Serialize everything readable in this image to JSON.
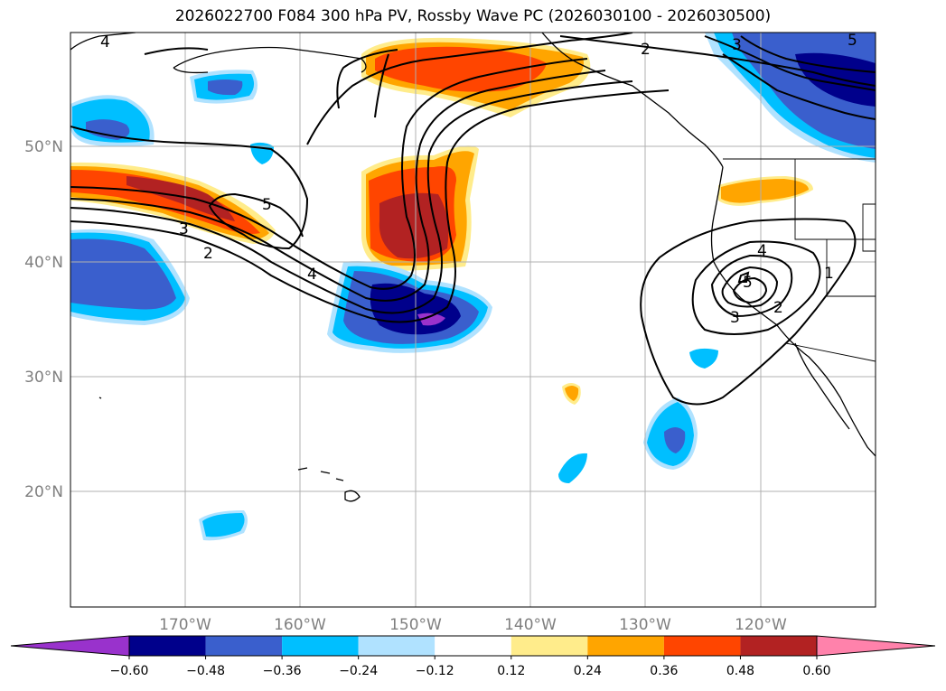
{
  "title": "2026022700 F084 300 hPa PV, Rossby Wave PC (2026030100 - 2026030500)",
  "lat_labels": [
    "50°N",
    "40°N",
    "30°N",
    "20°N"
  ],
  "lon_labels": [
    "170°W",
    "160°W",
    "150°W",
    "140°W",
    "130°W",
    "120°W"
  ],
  "colorbar": {
    "tick_labels": [
      "−0.60",
      "−0.48",
      "−0.36",
      "−0.24",
      "−0.12",
      "0.12",
      "0.24",
      "0.36",
      "0.48",
      "0.60"
    ],
    "colors": [
      "#9932cc",
      "#00008b",
      "#3a5fcd",
      "#00bfff",
      "#b0e2ff",
      "#ffffff",
      "#ffec8b",
      "#ffa500",
      "#ff4500",
      "#b22222",
      "#ff82ab"
    ]
  },
  "contour_labels": [
    "4",
    "2",
    "3",
    "5",
    "5",
    "3",
    "2",
    "4",
    "4",
    "5",
    "3",
    "2",
    "1"
  ],
  "palette": {
    "neg_060": "#9932cc",
    "neg_048": "#00008b",
    "neg_036": "#3a5fcd",
    "neg_024": "#00bfff",
    "neg_012": "#b0e2ff",
    "pos_012": "#ffec8b",
    "pos_024": "#ffa500",
    "pos_036": "#ff4500",
    "pos_048": "#b22222",
    "pos_060": "#ff82ab"
  }
}
